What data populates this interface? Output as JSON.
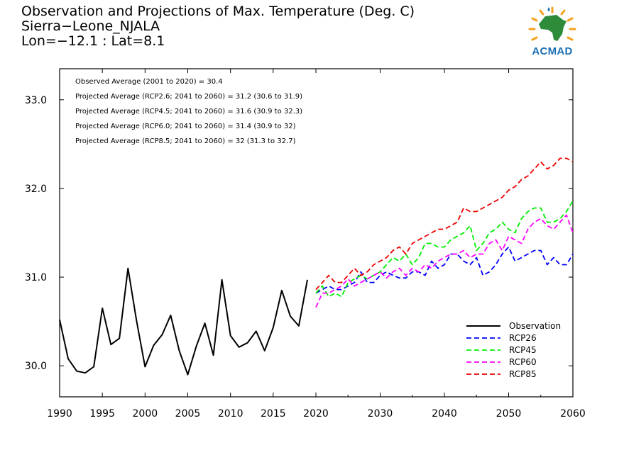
{
  "title": {
    "line1": "Observation and Projections of Max. Temperature (Deg. C)",
    "line2": "Sierra−Leone_NJALA",
    "line3": "Lon=−12.1 : Lat=8.1"
  },
  "logo": {
    "text": "ACMAD"
  },
  "annotations": [
    "Observed Average (2001 to 2020) = 30.4",
    "Projected Average (RCP2.6; 2041 to 2060) = 31.2 (30.6 to 31.9)",
    "Projected Average (RCP4.5; 2041 to 2060) = 31.6 (30.9 to 32.3)",
    "Projected Average (RCP6.0; 2041 to 2060) = 31.4 (30.9 to 32)",
    "Projected Average (RCP8.5; 2041 to 2060) = 32 (31.3 to 32.7)"
  ],
  "chart_data": {
    "type": "line",
    "title": "Observation and Projections of Max. Temperature (Deg. C)",
    "xlabel": "",
    "ylabel": "",
    "grid": false,
    "legend_position": "bottom-right",
    "x_ticks": [
      "1990",
      "1995",
      "2000",
      "2005",
      "2010",
      "2015",
      "2020",
      "2030",
      "2040",
      "2050",
      "2060"
    ],
    "y_ticks": [
      "30.0",
      "31.0",
      "32.0",
      "33.0"
    ],
    "y_range": [
      29.65,
      33.35
    ],
    "series": [
      {
        "name": "Observation",
        "color": "#000000",
        "dash": "solid",
        "x": [
          1990,
          1991,
          1992,
          1993,
          1994,
          1995,
          1996,
          1997,
          1998,
          1999,
          2000,
          2001,
          2002,
          2003,
          2004,
          2005,
          2006,
          2007,
          2008,
          2009,
          2010,
          2011,
          2012,
          2013,
          2014,
          2015,
          2016,
          2017,
          2018,
          2019
        ],
        "y": [
          30.52,
          30.08,
          29.94,
          29.92,
          29.99,
          30.65,
          30.24,
          30.31,
          31.1,
          30.51,
          29.99,
          30.23,
          30.35,
          30.57,
          30.17,
          29.9,
          30.22,
          30.48,
          30.12,
          30.97,
          30.34,
          30.21,
          30.26,
          30.39,
          30.17,
          30.43,
          30.85,
          30.56,
          30.45,
          30.97
        ]
      },
      {
        "name": "RCP26",
        "color": "#0000ff",
        "dash": "dashed",
        "x": [
          2020,
          2021,
          2022,
          2023,
          2024,
          2025,
          2026,
          2027,
          2028,
          2029,
          2030,
          2031,
          2032,
          2033,
          2034,
          2035,
          2036,
          2037,
          2038,
          2039,
          2040,
          2041,
          2042,
          2043,
          2044,
          2045,
          2046,
          2047,
          2048,
          2049,
          2050,
          2051,
          2052,
          2053,
          2054,
          2055,
          2056,
          2057,
          2058,
          2059,
          2060
        ],
        "y": [
          30.82,
          30.86,
          30.9,
          30.86,
          30.86,
          30.9,
          30.94,
          31.06,
          30.94,
          30.94,
          31.02,
          31.06,
          31.02,
          30.99,
          30.99,
          31.06,
          31.06,
          31.02,
          31.18,
          31.1,
          31.14,
          31.26,
          31.26,
          31.18,
          31.14,
          31.22,
          31.02,
          31.06,
          31.14,
          31.26,
          31.34,
          31.18,
          31.22,
          31.26,
          31.3,
          31.3,
          31.14,
          31.22,
          31.14,
          31.14,
          31.26
        ]
      },
      {
        "name": "RCP45",
        "color": "#00ee00",
        "dash": "dashed",
        "x": [
          2020,
          2021,
          2022,
          2023,
          2024,
          2025,
          2026,
          2027,
          2028,
          2029,
          2030,
          2031,
          2032,
          2033,
          2034,
          2035,
          2036,
          2037,
          2038,
          2039,
          2040,
          2041,
          2042,
          2043,
          2044,
          2045,
          2046,
          2047,
          2048,
          2049,
          2050,
          2051,
          2052,
          2053,
          2054,
          2055,
          2056,
          2057,
          2058,
          2059,
          2060
        ],
        "y": [
          30.82,
          30.9,
          30.78,
          30.82,
          30.78,
          30.94,
          30.98,
          31.02,
          30.98,
          31.02,
          31.06,
          31.14,
          31.22,
          31.18,
          31.26,
          31.14,
          31.22,
          31.38,
          31.38,
          31.34,
          31.34,
          31.42,
          31.46,
          31.5,
          31.58,
          31.3,
          31.38,
          31.5,
          31.54,
          31.62,
          31.54,
          31.5,
          31.66,
          31.74,
          31.78,
          31.78,
          31.62,
          31.62,
          31.66,
          31.74,
          31.86
        ]
      },
      {
        "name": "RCP60",
        "color": "#ff00ff",
        "dash": "dashed",
        "x": [
          2020,
          2021,
          2022,
          2023,
          2024,
          2025,
          2026,
          2027,
          2028,
          2029,
          2030,
          2031,
          2032,
          2033,
          2034,
          2035,
          2036,
          2037,
          2038,
          2039,
          2040,
          2041,
          2042,
          2043,
          2044,
          2045,
          2046,
          2047,
          2048,
          2049,
          2050,
          2051,
          2052,
          2053,
          2054,
          2055,
          2056,
          2057,
          2058,
          2059,
          2060
        ],
        "y": [
          30.66,
          30.82,
          30.82,
          30.86,
          30.9,
          30.98,
          30.9,
          30.94,
          30.98,
          31.02,
          31.06,
          30.99,
          31.06,
          31.1,
          31.02,
          31.1,
          31.06,
          31.14,
          31.1,
          31.18,
          31.22,
          31.26,
          31.26,
          31.3,
          31.22,
          31.26,
          31.26,
          31.38,
          31.42,
          31.3,
          31.46,
          31.42,
          31.38,
          31.54,
          31.62,
          31.66,
          31.58,
          31.54,
          31.62,
          31.7,
          31.5
        ]
      },
      {
        "name": "RCP85",
        "color": "#ee0000",
        "dash": "dashed",
        "x": [
          2020,
          2021,
          2022,
          2023,
          2024,
          2025,
          2026,
          2027,
          2028,
          2029,
          2030,
          2031,
          2032,
          2033,
          2034,
          2035,
          2036,
          2037,
          2038,
          2039,
          2040,
          2041,
          2042,
          2043,
          2044,
          2045,
          2046,
          2047,
          2048,
          2049,
          2050,
          2051,
          2052,
          2053,
          2054,
          2055,
          2056,
          2057,
          2058,
          2059,
          2060
        ],
        "y": [
          30.86,
          30.94,
          31.02,
          30.94,
          30.94,
          31.02,
          31.1,
          31.02,
          31.06,
          31.14,
          31.18,
          31.22,
          31.3,
          31.34,
          31.26,
          31.38,
          31.42,
          31.46,
          31.5,
          31.54,
          31.54,
          31.58,
          31.62,
          31.78,
          31.74,
          31.74,
          31.78,
          31.82,
          31.86,
          31.9,
          31.98,
          32.02,
          32.1,
          32.14,
          32.22,
          32.3,
          32.22,
          32.26,
          32.34,
          32.34,
          32.3
        ]
      }
    ]
  },
  "colors": {
    "observation": "#000000",
    "rcp26": "#0000ff",
    "rcp45": "#00ee00",
    "rcp60": "#ff00ff",
    "rcp85": "#ee0000",
    "logo_blue": "#1b6fb3",
    "logo_green": "#2e8b3a",
    "logo_orange": "#f4a11d"
  }
}
